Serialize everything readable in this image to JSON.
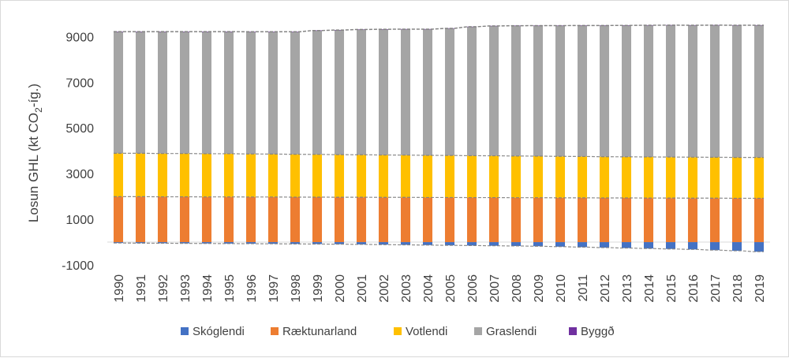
{
  "chart_data": {
    "type": "bar",
    "stacked": true,
    "ylabel_main": "Losun GHL (kt CO",
    "ylabel_sub": "2",
    "ylabel_tail": "-íg.)",
    "ylim": [
      -1000,
      9600
    ],
    "yticks": [
      -1000,
      1000,
      3000,
      5000,
      7000,
      9000
    ],
    "grid": false,
    "legend_position": "bottom",
    "categories": [
      "1990",
      "1991",
      "1992",
      "1993",
      "1994",
      "1995",
      "1996",
      "1997",
      "1998",
      "1999",
      "2000",
      "2001",
      "2002",
      "2003",
      "2004",
      "2005",
      "2006",
      "2007",
      "2008",
      "2009",
      "2010",
      "2011",
      "2012",
      "2013",
      "2014",
      "2015",
      "2016",
      "2017",
      "2018",
      "2019"
    ],
    "series": [
      {
        "name": "Skóglendi",
        "color": "#4472c4",
        "values": [
          -40,
          -45,
          -50,
          -55,
          -60,
          -65,
          -70,
          -75,
          -80,
          -85,
          -90,
          -100,
          -110,
          -120,
          -130,
          -140,
          -150,
          -160,
          -170,
          -180,
          -200,
          -220,
          -240,
          -260,
          -280,
          -300,
          -320,
          -350,
          -380,
          -420
        ]
      },
      {
        "name": "Ræktunarland",
        "color": "#ed7d31",
        "values": [
          1990,
          1990,
          1985,
          1985,
          1980,
          1980,
          1975,
          1975,
          1970,
          1970,
          1965,
          1965,
          1960,
          1960,
          1955,
          1955,
          1950,
          1950,
          1945,
          1945,
          1940,
          1940,
          1935,
          1935,
          1930,
          1930,
          1925,
          1925,
          1920,
          1920
        ]
      },
      {
        "name": "Votlendi",
        "color": "#ffc000",
        "values": [
          1900,
          1900,
          1895,
          1895,
          1890,
          1890,
          1885,
          1880,
          1875,
          1870,
          1865,
          1860,
          1855,
          1850,
          1845,
          1840,
          1835,
          1830,
          1825,
          1820,
          1815,
          1810,
          1805,
          1800,
          1800,
          1795,
          1795,
          1790,
          1790,
          1790
        ]
      },
      {
        "name": "Graslendi",
        "color": "#a5a5a5",
        "values": [
          5320,
          5320,
          5330,
          5330,
          5340,
          5340,
          5345,
          5350,
          5360,
          5420,
          5450,
          5480,
          5500,
          5510,
          5520,
          5560,
          5640,
          5680,
          5700,
          5710,
          5720,
          5730,
          5740,
          5750,
          5760,
          5770,
          5770,
          5780,
          5780,
          5780
        ]
      },
      {
        "name": "Byggð",
        "color": "#7030a0",
        "values": [
          10,
          10,
          10,
          10,
          10,
          10,
          10,
          10,
          10,
          10,
          10,
          10,
          10,
          10,
          10,
          10,
          10,
          10,
          10,
          10,
          10,
          10,
          10,
          10,
          10,
          10,
          10,
          10,
          10,
          10
        ]
      }
    ]
  }
}
